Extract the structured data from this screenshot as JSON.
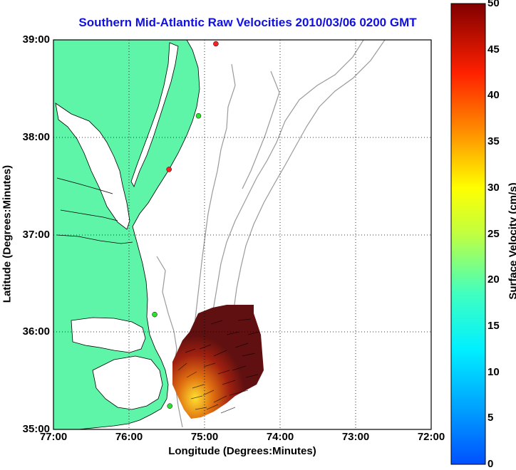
{
  "title": "Southern Mid-Atlantic Raw Velocities 2010/03/06 0200 GMT",
  "axes": {
    "xlabel": "Longitude (Degrees:Minutes)",
    "ylabel": "Latitude (Degrees:Minutes)",
    "x_ticks": [
      "77:00",
      "76:00",
      "75:00",
      "74:00",
      "73:00",
      "72:00"
    ],
    "y_ticks": [
      "39:00",
      "38:00",
      "37:00",
      "36:00",
      "35:00"
    ],
    "x_range": [
      -77,
      -72
    ],
    "y_range": [
      35,
      39
    ],
    "grid": "dotted"
  },
  "colorbar": {
    "label": "Surface Velocity (cm/s)",
    "ticks": [
      "0",
      "5",
      "10",
      "15",
      "20",
      "25",
      "30",
      "35",
      "40",
      "45",
      "50"
    ],
    "range": [
      0,
      50
    ],
    "colormap": "jet"
  },
  "colors": {
    "land": "#5ff5a8",
    "coast": "#000000",
    "bathymetry": "#9a9a9a",
    "title": "#1010e0"
  },
  "stations": [
    {
      "lon": -74.85,
      "lat": 38.96,
      "color": "#ff2020"
    },
    {
      "lon": -75.08,
      "lat": 38.22,
      "color": "#30e030"
    },
    {
      "lon": -75.47,
      "lat": 37.67,
      "color": "#ff2020"
    },
    {
      "lon": -75.66,
      "lat": 36.18,
      "color": "#30e030"
    },
    {
      "lon": -75.46,
      "lat": 35.24,
      "color": "#30e030"
    }
  ]
}
